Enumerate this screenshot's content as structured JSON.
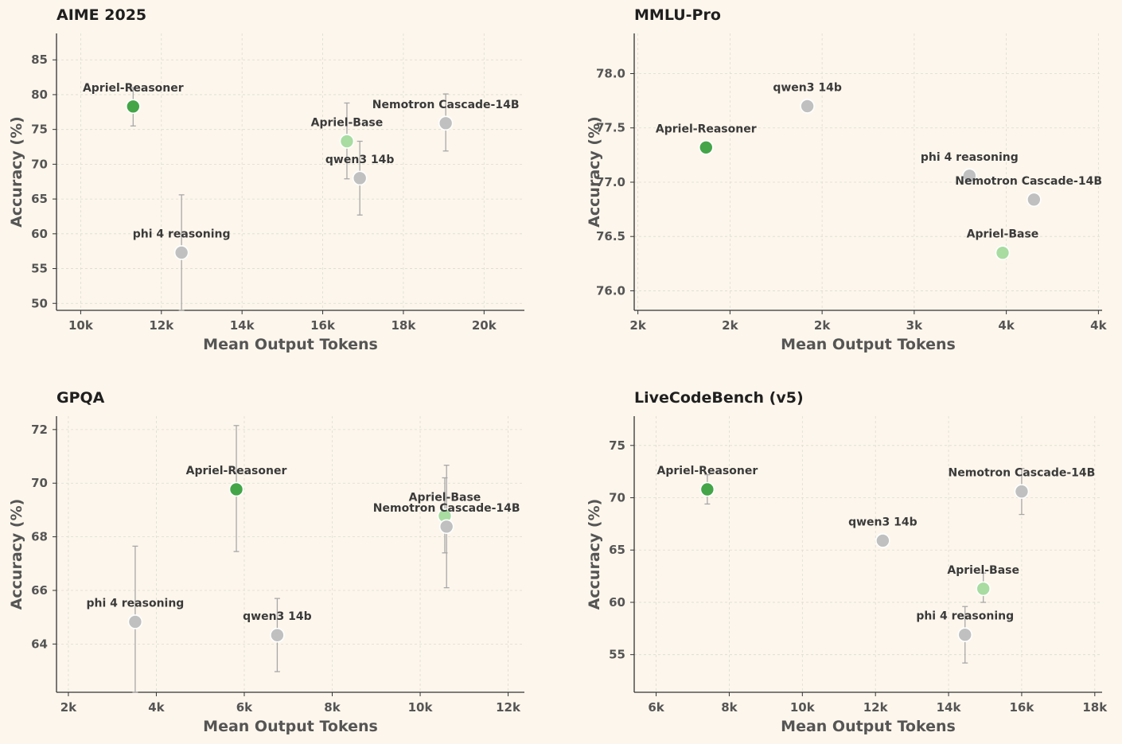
{
  "chart_data": [
    {
      "type": "scatter",
      "title": "AIME 2025",
      "xlabel": "Mean Output Tokens",
      "ylabel": "Accuracy (%)",
      "xlim": [
        9400,
        21000
      ],
      "ylim": [
        49,
        88.8
      ],
      "xticks": [
        10000,
        12000,
        14000,
        16000,
        18000,
        20000
      ],
      "xtick_labels": [
        "10k",
        "12k",
        "14k",
        "16k",
        "18k",
        "20k"
      ],
      "yticks": [
        50,
        55,
        60,
        65,
        70,
        75,
        80,
        85
      ],
      "ytick_labels": [
        "50",
        "55",
        "60",
        "65",
        "70",
        "75",
        "80",
        "85"
      ],
      "grid": true,
      "points": [
        {
          "name": "Apriel-Reasoner",
          "x": 11300,
          "y": 78.3,
          "err_low": 75.5,
          "err_high": 81.0,
          "color": "#43a547",
          "label_side": "above"
        },
        {
          "name": "Apriel-Base",
          "x": 16600,
          "y": 73.3,
          "err_low": 67.9,
          "err_high": 78.8,
          "color": "#a8dca0",
          "label_side": "above"
        },
        {
          "name": "qwen3 14b",
          "x": 16920,
          "y": 68.0,
          "err_low": 62.7,
          "err_high": 73.3,
          "color": "#c0c0c0",
          "label_side": "above"
        },
        {
          "name": "Nemotron Cascade-14B",
          "x": 19050,
          "y": 75.9,
          "err_low": 71.9,
          "err_high": 80.1,
          "color": "#c0c0c0",
          "label_side": "above"
        },
        {
          "name": "phi 4 reasoning",
          "x": 12500,
          "y": 57.3,
          "err_low": 49.0,
          "err_high": 65.6,
          "color": "#c0c0c0",
          "label_side": "above"
        }
      ]
    },
    {
      "type": "scatter",
      "title": "MMLU-Pro",
      "xlabel": "Mean Output Tokens",
      "ylabel": "Accuracy (%)",
      "xlim": [
        1480,
        4020
      ],
      "ylim": [
        75.82,
        78.37
      ],
      "xticks": [
        1500,
        2000,
        2500,
        3000,
        3500,
        4000
      ],
      "xtick_labels": [
        "2k",
        "2k",
        "2k",
        "3k",
        "4k",
        "4k"
      ],
      "yticks": [
        76.0,
        76.5,
        77.0,
        77.5,
        78.0
      ],
      "ytick_labels": [
        "76.0",
        "76.5",
        "77.0",
        "77.5",
        "78.0"
      ],
      "grid": true,
      "points": [
        {
          "name": "qwen3 14b",
          "x": 2420,
          "y": 77.7,
          "color": "#c0c0c0",
          "label_side": "above"
        },
        {
          "name": "Apriel-Reasoner",
          "x": 1870,
          "y": 77.32,
          "color": "#43a547",
          "label_side": "above"
        },
        {
          "name": "phi 4 reasoning",
          "x": 3300,
          "y": 77.06,
          "color": "#c0c0c0",
          "label_side": "above"
        },
        {
          "name": "Nemotron Cascade-14B",
          "x": 3650,
          "y": 76.84,
          "color": "#c0c0c0",
          "label_side": "above"
        },
        {
          "name": "Apriel-Base",
          "x": 3480,
          "y": 76.35,
          "color": "#a8dca0",
          "label_side": "above"
        }
      ]
    },
    {
      "type": "scatter",
      "title": "GPQA",
      "xlabel": "Mean Output Tokens",
      "ylabel": "Accuracy (%)",
      "xlim": [
        1730,
        12370
      ],
      "ylim": [
        62.2,
        72.5
      ],
      "xticks": [
        2000,
        4000,
        6000,
        8000,
        10000,
        12000
      ],
      "xtick_labels": [
        "2k",
        "4k",
        "6k",
        "8k",
        "10k",
        "12k"
      ],
      "yticks": [
        64,
        66,
        68,
        70,
        72
      ],
      "ytick_labels": [
        "64",
        "66",
        "68",
        "70",
        "72"
      ],
      "grid": true,
      "points": [
        {
          "name": "Apriel-Reasoner",
          "x": 5820,
          "y": 69.77,
          "err_low": 67.45,
          "err_high": 72.15,
          "color": "#43a547",
          "label_side": "above"
        },
        {
          "name": "Apriel-Base",
          "x": 10560,
          "y": 68.78,
          "err_low": 67.4,
          "err_high": 70.2,
          "color": "#a8dca0",
          "label_side": "above"
        },
        {
          "name": "Nemotron Cascade-14B",
          "x": 10600,
          "y": 68.38,
          "err_low": 66.1,
          "err_high": 70.67,
          "color": "#c0c0c0",
          "label_side": "above"
        },
        {
          "name": "phi 4 reasoning",
          "x": 3520,
          "y": 64.83,
          "err_low": 62.2,
          "err_high": 67.65,
          "color": "#c0c0c0",
          "label_side": "above"
        },
        {
          "name": "qwen3 14b",
          "x": 6750,
          "y": 64.33,
          "err_low": 62.97,
          "err_high": 65.7,
          "color": "#c0c0c0",
          "label_side": "above"
        }
      ]
    },
    {
      "type": "scatter",
      "title": "LiveCodeBench (v5)",
      "xlabel": "Mean Output Tokens",
      "ylabel": "Accuracy (%)",
      "xlim": [
        5400,
        18200
      ],
      "ylim": [
        51.4,
        77.8
      ],
      "xticks": [
        6000,
        8000,
        10000,
        12000,
        14000,
        16000,
        18000
      ],
      "xtick_labels": [
        "6k",
        "8k",
        "10k",
        "12k",
        "14k",
        "16k",
        "18k"
      ],
      "yticks": [
        55,
        60,
        65,
        70,
        75
      ],
      "ytick_labels": [
        "55",
        "60",
        "65",
        "70",
        "75"
      ],
      "grid": true,
      "points": [
        {
          "name": "Apriel-Reasoner",
          "x": 7400,
          "y": 70.8,
          "err_low": 69.4,
          "err_high": 72.2,
          "color": "#43a547",
          "label_side": "above"
        },
        {
          "name": "Nemotron Cascade-14B",
          "x": 16000,
          "y": 70.6,
          "err_low": 68.4,
          "err_high": 72.8,
          "color": "#c0c0c0",
          "label_side": "above"
        },
        {
          "name": "qwen3 14b",
          "x": 12200,
          "y": 65.9,
          "color": "#c0c0c0",
          "label_side": "above"
        },
        {
          "name": "Apriel-Base",
          "x": 14950,
          "y": 61.3,
          "err_low": 60.0,
          "err_high": 62.8,
          "color": "#a8dca0",
          "label_side": "above"
        },
        {
          "name": "phi 4 reasoning",
          "x": 14450,
          "y": 56.9,
          "err_low": 54.2,
          "err_high": 59.6,
          "color": "#c0c0c0",
          "label_side": "above"
        }
      ]
    }
  ]
}
